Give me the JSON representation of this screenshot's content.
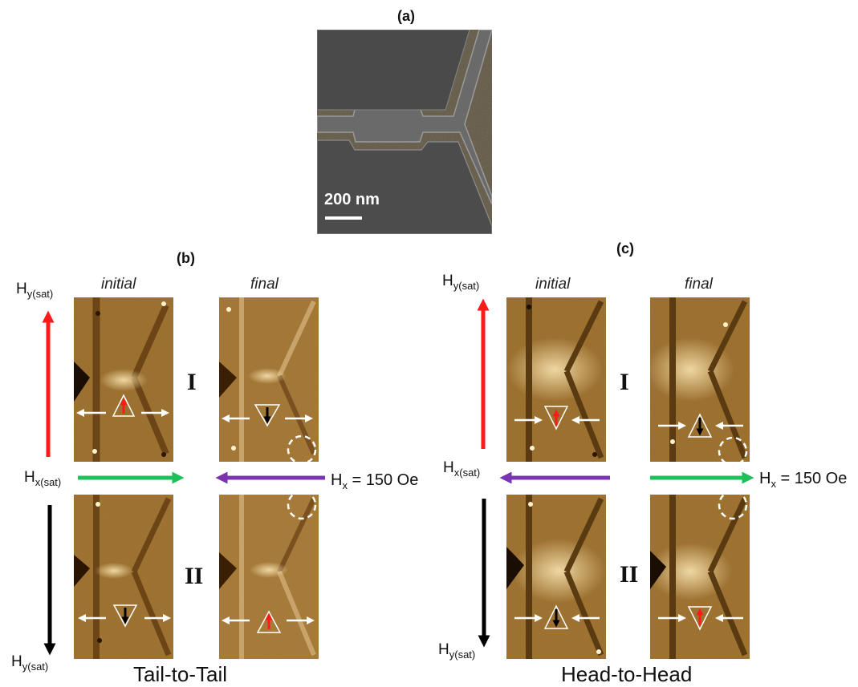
{
  "panel_labels": {
    "a": "(a)",
    "b": "(b)",
    "c": "(c)"
  },
  "sem": {
    "scale_bar_text": "200 nm"
  },
  "panel_b": {
    "col_initial": "initial",
    "col_final": "final",
    "state_I": "I",
    "state_II": "II",
    "hy_top_main": "H",
    "hy_top_sub": "y(sat)",
    "hx_main": "H",
    "hx_sub": "x(sat)",
    "hy_bottom_main": "H",
    "hy_bottom_sub": "y(sat)",
    "field_main": "H",
    "field_sub": "x",
    "field_value": " = 150 Oe",
    "caption": "Tail-to-Tail"
  },
  "panel_c": {
    "col_initial": "initial",
    "col_final": "final",
    "state_I": "I",
    "state_II": "II",
    "hy_top_main": "H",
    "hy_top_sub": "y(sat)",
    "hx_main": "H",
    "hx_sub": "x(sat)",
    "hy_bottom_main": "H",
    "hy_bottom_sub": "y(sat)",
    "field_main": "H",
    "field_sub": "x",
    "field_value": " = 150 Oe",
    "caption": "Head-to-Head"
  },
  "colors": {
    "red_arrow": "#ff1a1a",
    "green_arrow": "#1fbf5a",
    "purple_arrow": "#7b33b0",
    "black_arrow": "#000000",
    "mfm_base": "#9a6a2a"
  }
}
